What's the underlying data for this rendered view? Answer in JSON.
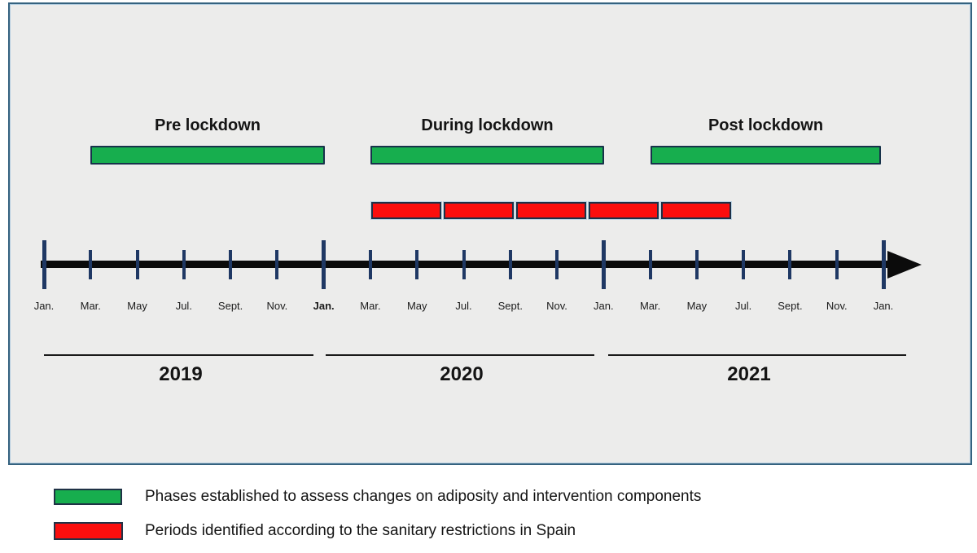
{
  "panel": {
    "phases": [
      {
        "id": "pre",
        "label": "Pre lockdown"
      },
      {
        "id": "during",
        "label": "During lockdown"
      },
      {
        "id": "post",
        "label": "Post lockdown"
      }
    ],
    "periods": {
      "count": 5
    },
    "timeline": {
      "months": [
        "Jan.",
        "Mar.",
        "May",
        "Jul.",
        "Sept.",
        "Nov.",
        "Jan.",
        "Mar.",
        "May",
        "Jul.",
        "Sept.",
        "Nov.",
        "Jan.",
        "Mar.",
        "May",
        "Jul.",
        "Sept.",
        "Nov.",
        "Jan."
      ],
      "major_every": 6,
      "bold_month_index": 6
    },
    "years": [
      {
        "label": "2019"
      },
      {
        "label": "2020"
      },
      {
        "label": "2021"
      }
    ]
  },
  "legend": {
    "items": [
      {
        "swatch": "green",
        "label": "Phases established to assess changes on adiposity and intervention components"
      },
      {
        "swatch": "red",
        "label": "Periods identified according to the sanitary restrictions in Spain"
      }
    ]
  },
  "colors": {
    "green": "#17ae4e",
    "red": "#fb0e0e",
    "navy": "#1f3864",
    "panel_bg": "#ececeb",
    "panel_border": "#35627f"
  }
}
